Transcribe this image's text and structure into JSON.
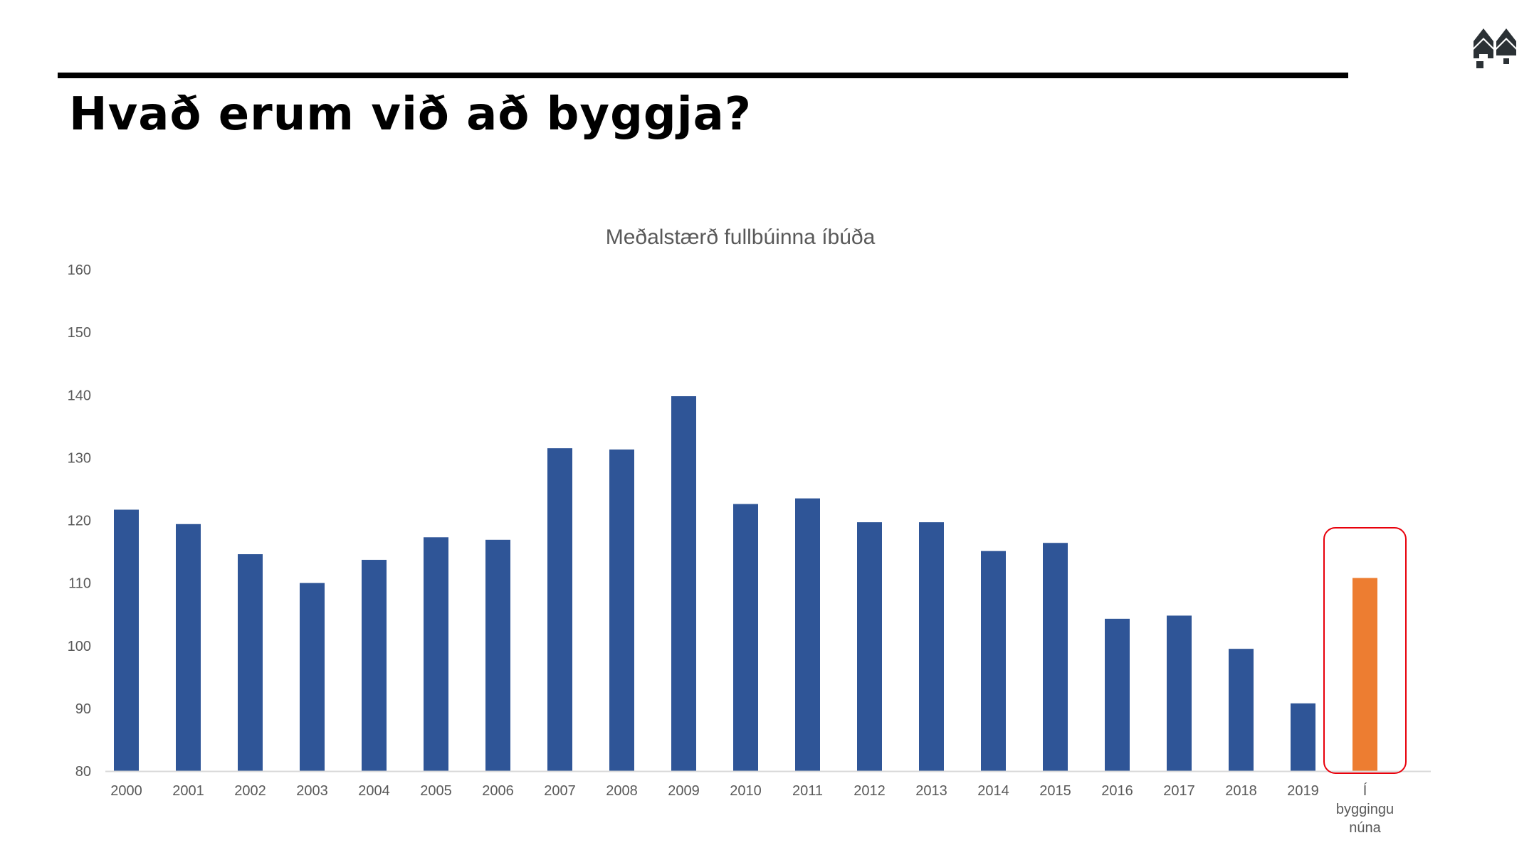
{
  "slide": {
    "title": "Hvað erum við að byggja?"
  },
  "logo": {
    "icon": "houses-logo-icon",
    "color": "#2b3135"
  },
  "colors": {
    "bar": "#2f5597",
    "highlight_bar": "#ed7d31",
    "highlight_box": "#e8000b",
    "text": "#595959",
    "axis": "#d9d9d9"
  },
  "chart_data": {
    "type": "bar",
    "title": "Meðalstærð fullbúinna íbúða",
    "xlabel": "",
    "ylabel": "",
    "ylim": [
      80,
      160
    ],
    "yticks": [
      80,
      90,
      100,
      110,
      120,
      130,
      140,
      150,
      160
    ],
    "grid": false,
    "categories": [
      "2000",
      "2001",
      "2002",
      "2003",
      "2004",
      "2005",
      "2006",
      "2007",
      "2008",
      "2009",
      "2010",
      "2011",
      "2012",
      "2013",
      "2014",
      "2015",
      "2016",
      "2017",
      "2018",
      "2019",
      "Í byggingu núna"
    ],
    "values": [
      121.7,
      119.4,
      114.6,
      110.0,
      113.7,
      117.3,
      116.9,
      131.5,
      131.3,
      139.8,
      122.6,
      123.5,
      119.7,
      119.7,
      115.1,
      116.4,
      104.3,
      104.8,
      99.5,
      90.8,
      110.8
    ],
    "highlight": "Í byggingu núna"
  }
}
